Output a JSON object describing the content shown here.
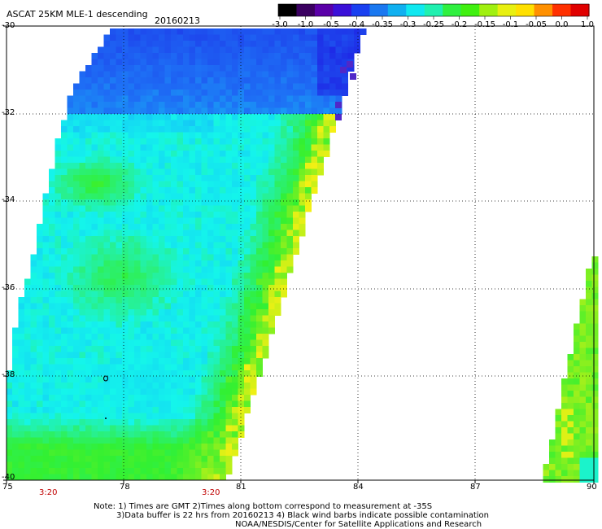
{
  "header": {
    "product": "ASCAT 25KM MLE-1 descending",
    "date": "20160213"
  },
  "colorbar": {
    "tick_labels": [
      "-3.0",
      "-1.0",
      "-0.5",
      "-0.4",
      "-0.35",
      "-0.3",
      "-0.25",
      "-0.2",
      "-0.15",
      "-0.1",
      "-0.05",
      "0.0",
      "1.0"
    ],
    "colors": [
      "#000000",
      "#3a0060",
      "#5a00a8",
      "#3a10d8",
      "#1a40f0",
      "#1a78f0",
      "#10b0f0",
      "#10e8f0",
      "#20f0b0",
      "#30f040",
      "#40f010",
      "#a0f010",
      "#e8f010",
      "#ffe000",
      "#ff9000",
      "#ff3000",
      "#e00000"
    ]
  },
  "map": {
    "lon_labels": [
      "75",
      "78",
      "81",
      "84",
      "87",
      "90"
    ],
    "lat_labels": [
      "-30",
      "-32",
      "-34",
      "-36",
      "-38",
      "-40"
    ],
    "time_labels": [
      "3:20",
      "3:20"
    ],
    "background": "#ffffff",
    "swath_colors": {
      "blue": "#1a60f0",
      "cyan": "#10f0f0",
      "green": "#30f030",
      "yellow": "#f0f010"
    }
  },
  "notes": {
    "line1": "Note: 1) Times are GMT 2)Times along bottom correspond to measurement at -35S",
    "line2": "3)Data buffer is 22 hrs from 20160213 4) Black wind barbs indicate possible contamination",
    "line3": "NOAA/NESDIS/Center for Satellite Applications and Research"
  }
}
